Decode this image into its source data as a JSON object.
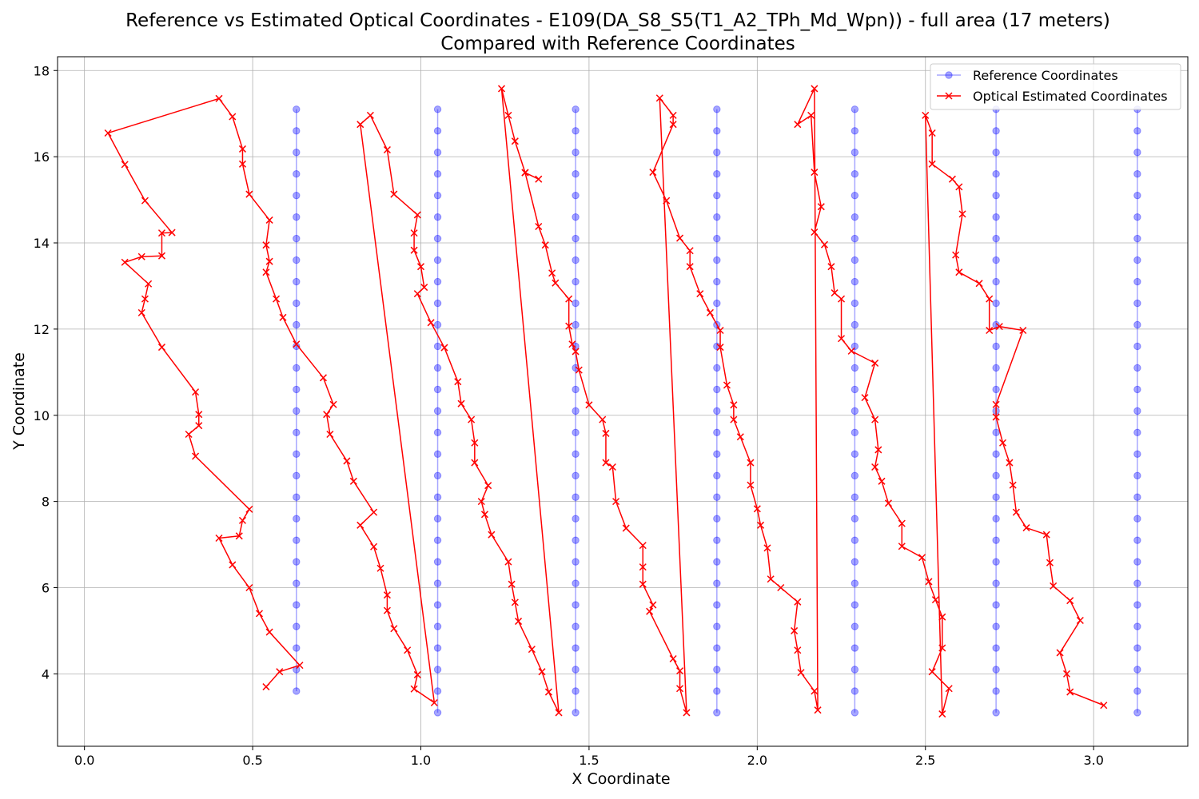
{
  "chart_data": {
    "type": "line",
    "title": "Reference vs Estimated Optical Coordinates - E109(DA_S8_S5(T1_A2_TPh_Md_Wpn)) - full area (17 meters)",
    "subtitle": "Compared with Reference Coordinates",
    "xlabel": "X Coordinate",
    "ylabel": "Y Coordinate",
    "xlim": [
      -0.08,
      3.28
    ],
    "ylim": [
      2.32,
      18.32
    ],
    "xticks": [
      "0.0",
      "0.5",
      "1.0",
      "1.5",
      "2.0",
      "2.5",
      "3.0"
    ],
    "xtick_values": [
      0.0,
      0.5,
      1.0,
      1.5,
      2.0,
      2.5,
      3.0
    ],
    "yticks": [
      "4",
      "6",
      "8",
      "10",
      "12",
      "14",
      "16",
      "18"
    ],
    "ytick_values": [
      4,
      6,
      8,
      10,
      12,
      14,
      16,
      18
    ],
    "grid": true,
    "legend_position": "top-right",
    "reference": {
      "name": "Reference Coordinates",
      "color": "#0000ff",
      "columns": [
        {
          "x": 0.63,
          "y_start": 3.6,
          "y_end": 17.1,
          "step": 0.5
        },
        {
          "x": 1.05,
          "y_start": 3.1,
          "y_end": 17.1,
          "step": 0.5
        },
        {
          "x": 1.46,
          "y_start": 3.1,
          "y_end": 17.1,
          "step": 0.5
        },
        {
          "x": 1.88,
          "y_start": 3.1,
          "y_end": 17.1,
          "step": 0.5
        },
        {
          "x": 2.29,
          "y_start": 3.1,
          "y_end": 17.1,
          "step": 0.5
        },
        {
          "x": 2.71,
          "y_start": 3.1,
          "y_end": 17.1,
          "step": 0.5
        },
        {
          "x": 3.13,
          "y_start": 3.1,
          "y_end": 17.1,
          "step": 0.5
        }
      ]
    },
    "estimated": {
      "name": "Optical Estimated Coordinates",
      "color": "#ff0000",
      "points": [
        [
          0.54,
          3.7
        ],
        [
          0.58,
          4.05
        ],
        [
          0.64,
          4.2
        ],
        [
          0.55,
          4.97
        ],
        [
          0.52,
          5.4
        ],
        [
          0.49,
          6.0
        ],
        [
          0.44,
          6.53
        ],
        [
          0.4,
          7.15
        ],
        [
          0.46,
          7.2
        ],
        [
          0.47,
          7.56
        ],
        [
          0.49,
          7.82
        ],
        [
          0.33,
          9.05
        ],
        [
          0.31,
          9.56
        ],
        [
          0.34,
          9.76
        ],
        [
          0.34,
          10.02
        ],
        [
          0.33,
          10.54
        ],
        [
          0.23,
          11.58
        ],
        [
          0.17,
          12.38
        ],
        [
          0.18,
          12.7
        ],
        [
          0.19,
          13.05
        ],
        [
          0.12,
          13.55
        ],
        [
          0.17,
          13.68
        ],
        [
          0.23,
          13.7
        ],
        [
          0.23,
          14.23
        ],
        [
          0.26,
          14.24
        ],
        [
          0.18,
          14.98
        ],
        [
          0.12,
          15.82
        ],
        [
          0.07,
          16.55
        ],
        [
          0.4,
          17.35
        ],
        [
          0.44,
          16.93
        ],
        [
          0.47,
          16.18
        ],
        [
          0.47,
          15.83
        ],
        [
          0.49,
          15.13
        ],
        [
          0.55,
          14.53
        ],
        [
          0.54,
          13.95
        ],
        [
          0.55,
          13.57
        ],
        [
          0.54,
          13.32
        ],
        [
          0.57,
          12.7
        ],
        [
          0.59,
          12.27
        ],
        [
          0.63,
          11.65
        ],
        [
          0.71,
          10.87
        ],
        [
          0.74,
          10.25
        ],
        [
          0.72,
          10.02
        ],
        [
          0.73,
          9.56
        ],
        [
          0.78,
          8.94
        ],
        [
          0.8,
          8.47
        ],
        [
          0.86,
          7.75
        ],
        [
          0.82,
          7.45
        ],
        [
          0.86,
          6.95
        ],
        [
          0.88,
          6.45
        ],
        [
          0.9,
          5.83
        ],
        [
          0.9,
          5.47
        ],
        [
          0.92,
          5.05
        ],
        [
          0.96,
          4.55
        ],
        [
          0.99,
          3.98
        ],
        [
          0.98,
          3.65
        ],
        [
          1.04,
          3.33
        ],
        [
          0.82,
          16.75
        ],
        [
          0.85,
          16.96
        ],
        [
          0.9,
          16.16
        ],
        [
          0.92,
          15.13
        ],
        [
          0.99,
          14.65
        ],
        [
          0.98,
          14.23
        ],
        [
          0.98,
          13.83
        ],
        [
          1.0,
          13.45
        ],
        [
          1.01,
          12.97
        ],
        [
          0.99,
          12.82
        ],
        [
          1.03,
          12.15
        ],
        [
          1.07,
          11.57
        ],
        [
          1.11,
          10.78
        ],
        [
          1.12,
          10.27
        ],
        [
          1.15,
          9.9
        ],
        [
          1.16,
          9.36
        ],
        [
          1.16,
          8.9
        ],
        [
          1.2,
          8.37
        ],
        [
          1.18,
          8.0
        ],
        [
          1.19,
          7.7
        ],
        [
          1.21,
          7.23
        ],
        [
          1.26,
          6.6
        ],
        [
          1.27,
          6.08
        ],
        [
          1.28,
          5.66
        ],
        [
          1.29,
          5.22
        ],
        [
          1.33,
          4.57
        ],
        [
          1.36,
          4.05
        ],
        [
          1.38,
          3.58
        ],
        [
          1.41,
          3.1
        ],
        [
          1.24,
          17.58
        ],
        [
          1.26,
          16.96
        ],
        [
          1.28,
          16.36
        ],
        [
          1.31,
          15.63
        ],
        [
          1.35,
          15.48
        ],
        [
          1.31,
          15.63
        ],
        [
          1.35,
          14.38
        ],
        [
          1.37,
          13.95
        ],
        [
          1.39,
          13.3
        ],
        [
          1.4,
          13.07
        ],
        [
          1.44,
          12.7
        ],
        [
          1.44,
          12.07
        ],
        [
          1.45,
          11.65
        ],
        [
          1.46,
          11.48
        ],
        [
          1.47,
          11.05
        ],
        [
          1.5,
          10.24
        ],
        [
          1.54,
          9.9
        ],
        [
          1.55,
          9.58
        ],
        [
          1.55,
          8.9
        ],
        [
          1.57,
          8.8
        ],
        [
          1.58,
          8.0
        ],
        [
          1.61,
          7.38
        ],
        [
          1.66,
          6.98
        ],
        [
          1.66,
          6.48
        ],
        [
          1.66,
          6.08
        ],
        [
          1.69,
          5.6
        ],
        [
          1.68,
          5.45
        ],
        [
          1.75,
          4.35
        ],
        [
          1.77,
          4.07
        ],
        [
          1.77,
          3.66
        ],
        [
          1.79,
          3.1
        ],
        [
          1.71,
          17.36
        ],
        [
          1.75,
          16.96
        ],
        [
          1.75,
          16.75
        ],
        [
          1.69,
          15.64
        ],
        [
          1.73,
          14.98
        ],
        [
          1.77,
          14.11
        ],
        [
          1.8,
          13.82
        ],
        [
          1.8,
          13.45
        ],
        [
          1.83,
          12.82
        ],
        [
          1.86,
          12.38
        ],
        [
          1.89,
          11.97
        ],
        [
          1.89,
          11.58
        ],
        [
          1.91,
          10.7
        ],
        [
          1.93,
          10.24
        ],
        [
          1.93,
          9.9
        ],
        [
          1.95,
          9.5
        ],
        [
          1.98,
          8.9
        ],
        [
          1.98,
          8.38
        ],
        [
          2.0,
          7.83
        ],
        [
          2.01,
          7.45
        ],
        [
          2.03,
          6.92
        ],
        [
          2.04,
          6.2
        ],
        [
          2.07,
          6.0
        ],
        [
          2.12,
          5.67
        ],
        [
          2.11,
          5.0
        ],
        [
          2.12,
          4.55
        ],
        [
          2.13,
          4.03
        ],
        [
          2.17,
          3.6
        ],
        [
          2.18,
          3.16
        ],
        [
          2.17,
          17.58
        ],
        [
          2.12,
          16.75
        ],
        [
          2.16,
          16.96
        ],
        [
          2.17,
          15.64
        ],
        [
          2.19,
          14.84
        ],
        [
          2.17,
          14.25
        ],
        [
          2.2,
          13.96
        ],
        [
          2.22,
          13.45
        ],
        [
          2.23,
          12.84
        ],
        [
          2.25,
          12.7
        ],
        [
          2.25,
          11.78
        ],
        [
          2.28,
          11.49
        ],
        [
          2.35,
          11.21
        ],
        [
          2.32,
          10.41
        ],
        [
          2.35,
          9.9
        ],
        [
          2.36,
          9.2
        ],
        [
          2.35,
          8.8
        ],
        [
          2.37,
          8.47
        ],
        [
          2.39,
          7.96
        ],
        [
          2.43,
          7.49
        ],
        [
          2.43,
          6.96
        ],
        [
          2.49,
          6.7
        ],
        [
          2.51,
          6.14
        ],
        [
          2.53,
          5.72
        ],
        [
          2.55,
          5.32
        ],
        [
          2.55,
          4.6
        ],
        [
          2.52,
          4.05
        ],
        [
          2.57,
          3.66
        ],
        [
          2.55,
          3.07
        ],
        [
          2.5,
          16.96
        ],
        [
          2.52,
          16.55
        ],
        [
          2.52,
          15.83
        ],
        [
          2.58,
          15.48
        ],
        [
          2.6,
          15.3
        ],
        [
          2.61,
          14.67
        ],
        [
          2.59,
          13.72
        ],
        [
          2.6,
          13.32
        ],
        [
          2.66,
          13.06
        ],
        [
          2.69,
          12.7
        ],
        [
          2.69,
          11.97
        ],
        [
          2.72,
          12.06
        ],
        [
          2.79,
          11.97
        ],
        [
          2.71,
          10.25
        ],
        [
          2.71,
          9.96
        ],
        [
          2.73,
          9.36
        ],
        [
          2.75,
          8.9
        ],
        [
          2.76,
          8.38
        ],
        [
          2.77,
          7.75
        ],
        [
          2.8,
          7.39
        ],
        [
          2.86,
          7.23
        ],
        [
          2.87,
          6.58
        ],
        [
          2.88,
          6.04
        ],
        [
          2.93,
          5.7
        ],
        [
          2.96,
          5.24
        ],
        [
          2.9,
          4.49
        ],
        [
          2.92,
          4.0
        ],
        [
          2.93,
          3.58
        ],
        [
          3.03,
          3.27
        ]
      ]
    }
  }
}
